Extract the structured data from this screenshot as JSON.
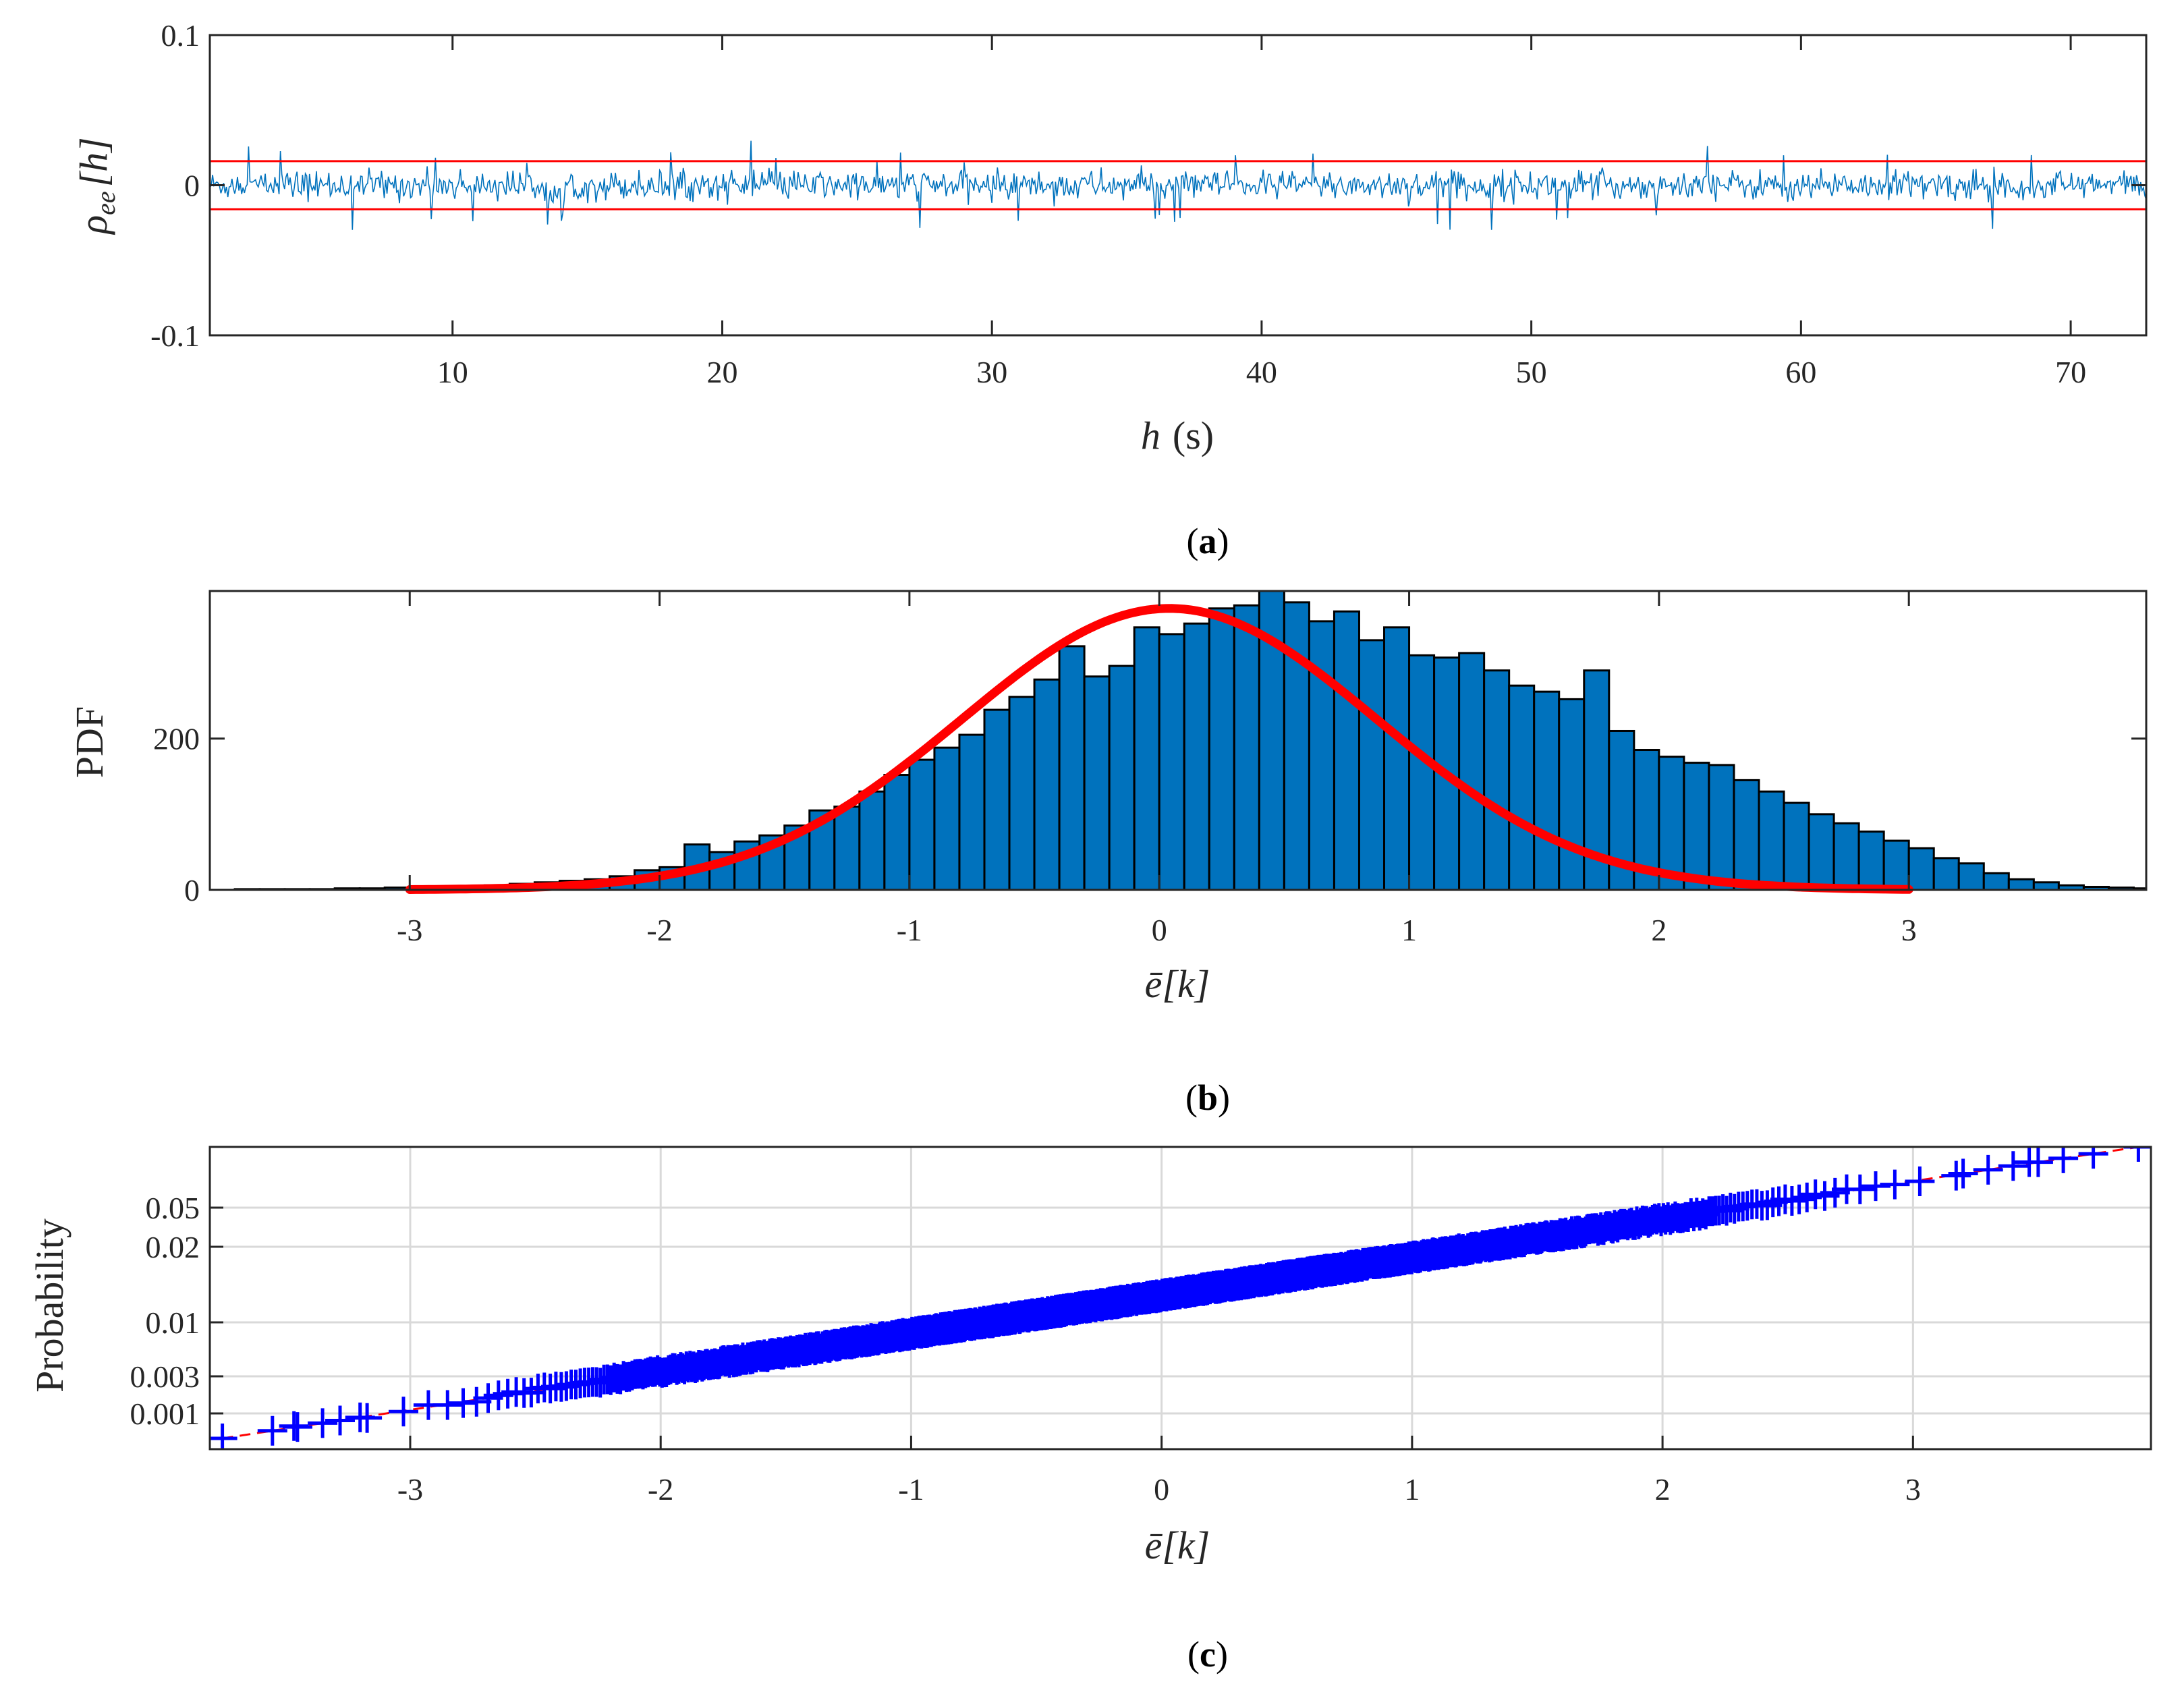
{
  "chart_data": [
    {
      "type": "line",
      "caption_letter": "a",
      "xlabel_var": "h",
      "xlabel_unit": "(s)",
      "ylabel_base": "ρ",
      "ylabel_sub": "ee",
      "ylabel_arg": "[h]",
      "xlim": [
        1,
        72.8
      ],
      "ylim": [
        -0.1,
        0.1
      ],
      "xticks": [
        10,
        20,
        30,
        40,
        50,
        60,
        70
      ],
      "yticks": [
        -0.1,
        0,
        0.1
      ],
      "ytick_labels": [
        "-0.1",
        "0",
        "0.1"
      ],
      "confidence_bounds": [
        0.016,
        -0.016
      ],
      "series": [
        {
          "color": "#0072bd",
          "noise_amplitude": 0.009,
          "peak_amplitude": 0.03,
          "n_samples": 1400
        }
      ],
      "bound_color": "#ff0000",
      "grid": false
    },
    {
      "type": "bar",
      "caption_letter": "b",
      "ylabel": "PDF",
      "xlabel_base": "ē",
      "xlabel_arg": "[k]",
      "xlim": [
        -3.8,
        3.95
      ],
      "ylim": [
        0,
        395
      ],
      "xticks": [
        -3,
        -2,
        -1,
        0,
        1,
        2,
        3
      ],
      "yticks": [
        0,
        200
      ],
      "bin_width": 0.1,
      "bin_start": -3.8,
      "values": [
        0,
        1,
        1,
        1,
        1,
        2,
        2,
        3,
        3,
        4,
        5,
        6,
        8,
        10,
        12,
        14,
        18,
        26,
        30,
        60,
        50,
        64,
        72,
        85,
        105,
        110,
        130,
        152,
        172,
        188,
        205,
        238,
        255,
        278,
        322,
        282,
        296,
        347,
        338,
        352,
        372,
        376,
        398,
        380,
        355,
        368,
        330,
        347,
        310,
        307,
        313,
        290,
        270,
        262,
        252,
        290,
        210,
        185,
        176,
        168,
        165,
        145,
        130,
        115,
        100,
        88,
        77,
        65,
        55,
        42,
        35,
        22,
        14,
        10,
        6,
        4,
        3,
        2
      ],
      "fit": {
        "type": "normal",
        "mean": 0.04,
        "peak": 372,
        "sigma": 0.83,
        "range": [
          -3,
          3
        ]
      },
      "bar_color": "#0072bd",
      "fit_color": "#ff0000",
      "grid": false
    },
    {
      "type": "scatter",
      "caption_letter": "c",
      "ylabel": "Probability",
      "xlabel_base": "ē",
      "xlabel_arg": "[k]",
      "xlim": [
        -3.8,
        3.95
      ],
      "xticks": [
        -3,
        -2,
        -1,
        0,
        1,
        2,
        3
      ],
      "ytick_labels": [
        "0.001",
        "0.003",
        "0.01",
        "0.02",
        "0.05"
      ],
      "marker": "+",
      "marker_color": "#0000ff",
      "reference_line_color": "#ff0000",
      "sample_range": [
        -3.75,
        3.9
      ],
      "grid": true
    }
  ]
}
